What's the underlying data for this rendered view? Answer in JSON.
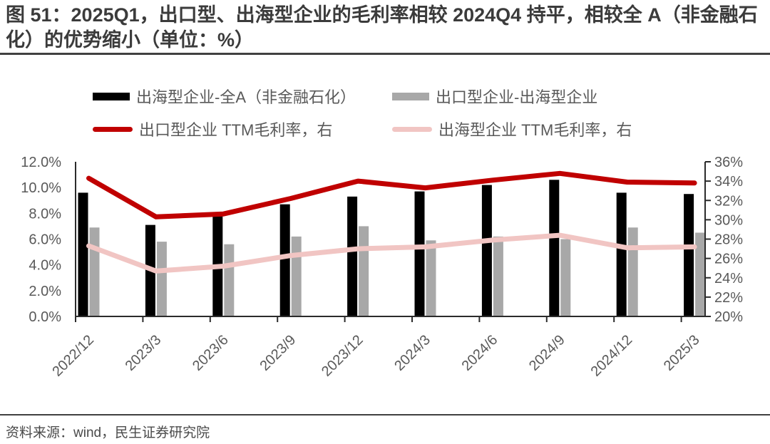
{
  "title": "图 51：2025Q1，出口型、出海型企业的毛利率相较 2024Q4 持平，相较全 A（非金融石化）的优势缩小（单位：%）",
  "source": "资料来源：wind，民生证券研究院",
  "colors": {
    "title_text": "#3b3b3b",
    "divider": "#404040",
    "axis_line": "#2b2b2b",
    "axis_label": "#595959",
    "legend_text": "#595959",
    "bar_black": "#000000",
    "bar_gray": "#a8a8a8",
    "line_red": "#c00000",
    "line_pink": "#f1c5c3",
    "background": "#ffffff"
  },
  "chart_data": {
    "type": "bar",
    "subtype": "bar-line combo, dual axis",
    "categories": [
      "2022/12",
      "2023/3",
      "2023/6",
      "2023/9",
      "2023/12",
      "2024/3",
      "2024/6",
      "2024/9",
      "2024/12",
      "2025/3"
    ],
    "series": [
      {
        "name": "出海型企业-全A（非金融石化）",
        "type": "bar",
        "axis": "left",
        "color": "#000000",
        "values": [
          9.6,
          7.1,
          7.8,
          8.7,
          9.3,
          9.7,
          10.2,
          10.6,
          9.6,
          9.5
        ]
      },
      {
        "name": "出口型企业-出海型企业",
        "type": "bar",
        "axis": "left",
        "color": "#a8a8a8",
        "values": [
          6.9,
          5.8,
          5.6,
          6.2,
          7.0,
          5.9,
          6.2,
          6.0,
          6.9,
          6.5
        ]
      },
      {
        "name": "出口型企业 TTM毛利率，右",
        "type": "line",
        "axis": "right",
        "color": "#c00000",
        "values": [
          34.3,
          30.3,
          30.6,
          32.2,
          34.0,
          33.3,
          34.1,
          34.8,
          33.9,
          33.8
        ]
      },
      {
        "name": "出海型企业 TTM毛利率，右",
        "type": "line",
        "axis": "right",
        "color": "#f1c5c3",
        "values": [
          27.3,
          24.7,
          25.2,
          26.3,
          27.0,
          27.2,
          27.9,
          28.4,
          27.1,
          27.2
        ]
      }
    ],
    "left_axis": {
      "min": 0,
      "max": 12,
      "ticks": [
        "12.0%",
        "10.0%",
        "8.0%",
        "6.0%",
        "4.0%",
        "2.0%",
        "0.0%"
      ]
    },
    "right_axis": {
      "min": 20,
      "max": 36,
      "ticks": [
        "36%",
        "34%",
        "32%",
        "30%",
        "28%",
        "26%",
        "24%",
        "22%",
        "20%"
      ]
    },
    "grid": false,
    "legend_position": "top"
  }
}
